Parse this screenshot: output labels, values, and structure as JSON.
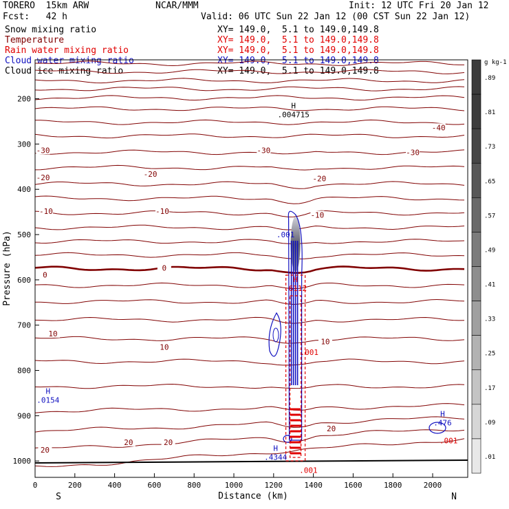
{
  "header": {
    "model": "TORERO  15km ARW",
    "center": "NCAR/MMM",
    "init": "Init: 12 UTC Fri 20 Jan 12",
    "fcst": "Fcst:   42 h",
    "valid": "Valid: 06 UTC Sun 22 Jan 12 (00 CST Sun 22 Jan 12)"
  },
  "legend": [
    {
      "name": "Snow mixing ratio",
      "range": "XY= 149.0,  5.1 to 149.0,149.8",
      "color": "#000000"
    },
    {
      "name": "Temperature",
      "range": "XY= 149.0,  5.1 to 149.0,149.8",
      "color": "#800000"
    },
    {
      "name": "Rain water mixing ratio",
      "range": "XY= 149.0,  5.1 to 149.0,149.8",
      "color": "#e00000"
    },
    {
      "name": "Cloud water mixing ratio",
      "range": "XY= 149.0,  5.1 to 149.0,149.8",
      "color": "#1010c0"
    },
    {
      "name": "Cloud ice mixing ratio",
      "range": "XY= 149.0,  5.1 to 149.0,149.8",
      "color": "#000000"
    }
  ],
  "chart_data": {
    "type": "cross-section contour",
    "xlabel": "Distance (km)",
    "ylabel": "Pressure (hPa)",
    "xlim": [
      0,
      2180
    ],
    "ylim_pressure": [
      100,
      1050
    ],
    "x_ticks": [
      0,
      200,
      400,
      600,
      800,
      1000,
      1200,
      1400,
      1600,
      1800,
      2000
    ],
    "y_ticks": [
      200,
      300,
      400,
      500,
      600,
      700,
      800,
      900,
      1000
    ],
    "end_labels": {
      "left": "S",
      "right": "N"
    },
    "colorbar": {
      "unit": "g kg-1",
      "ticks": [
        ".01",
        ".09",
        ".17",
        ".25",
        ".33",
        ".41",
        ".49",
        ".57",
        ".65",
        ".73",
        ".81",
        ".89"
      ]
    },
    "temperature_labels": [
      {
        "text": "-40",
        "x": 2030,
        "p": 265
      },
      {
        "text": "-30",
        "x": 40,
        "p": 315
      },
      {
        "text": "-30",
        "x": 1150,
        "p": 315
      },
      {
        "text": "-30",
        "x": 1900,
        "p": 320
      },
      {
        "text": "-20",
        "x": 40,
        "p": 375
      },
      {
        "text": "-20",
        "x": 580,
        "p": 368
      },
      {
        "text": "-20",
        "x": 1430,
        "p": 378
      },
      {
        "text": "-10",
        "x": 55,
        "p": 450
      },
      {
        "text": "-10",
        "x": 640,
        "p": 450
      },
      {
        "text": "-10",
        "x": 1420,
        "p": 458
      },
      {
        "text": "0",
        "x": 50,
        "p": 590
      },
      {
        "text": "0",
        "x": 650,
        "p": 575
      },
      {
        "text": "10",
        "x": 90,
        "p": 720
      },
      {
        "text": "10",
        "x": 650,
        "p": 750
      },
      {
        "text": "10",
        "x": 1460,
        "p": 738
      },
      {
        "text": "20",
        "x": 50,
        "p": 977
      },
      {
        "text": "20",
        "x": 470,
        "p": 960
      },
      {
        "text": "20",
        "x": 670,
        "p": 960
      },
      {
        "text": "20",
        "x": 1490,
        "p": 930
      }
    ],
    "max_labels": [
      {
        "mark": "H",
        "value": ".004715",
        "x": 1300,
        "p": 232,
        "color": "#000000"
      },
      {
        "mark": "H",
        "value": ".0154",
        "x": 65,
        "p": 862,
        "color": "#1010c0"
      },
      {
        "mark": "H",
        "value": ".4344",
        "x": 1210,
        "p": 988,
        "color": "#1010c0"
      },
      {
        "mark": "H",
        "value": ".476",
        "x": 2050,
        "p": 912,
        "color": "#1010c0"
      },
      {
        "mark": "H",
        "value": ".6112",
        "x": 1310,
        "p": 615,
        "color": "#e00000"
      }
    ],
    "contour_labels": [
      {
        "text": ".001",
        "x": 1260,
        "p": 500,
        "color": "#1010c0"
      },
      {
        "text": ".001",
        "x": 1380,
        "p": 760,
        "color": "#e00000"
      },
      {
        "text": ".001",
        "x": 2080,
        "p": 955,
        "color": "#e00000"
      },
      {
        "text": ".001",
        "x": 1375,
        "p": 1020,
        "color": "#e00000"
      }
    ]
  }
}
